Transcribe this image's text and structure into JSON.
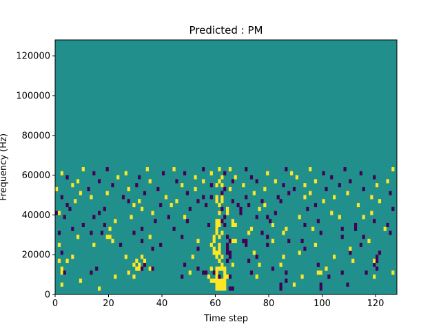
{
  "chart_data": {
    "type": "heatmap",
    "title": "Predicted : PM",
    "xlabel": "Time step",
    "ylabel": "Frequency (Hz)",
    "xlim": [
      0,
      128
    ],
    "ylim": [
      0,
      128000
    ],
    "x_ticks": [
      0,
      20,
      40,
      60,
      80,
      100,
      120
    ],
    "x_tick_labels": [
      "0",
      "20",
      "40",
      "60",
      "80",
      "100",
      "120"
    ],
    "y_ticks": [
      0,
      20000,
      40000,
      60000,
      80000,
      100000,
      120000
    ],
    "y_tick_labels": [
      "0",
      "20000",
      "40000",
      "60000",
      "80000",
      "100000",
      "120000"
    ],
    "n_time_steps": 128,
    "n_freq_bins": 64,
    "background_value": 0,
    "value_colors": {
      "-1": "#440154",
      "0": "#21908d",
      "1": "#fde725"
    },
    "cells": [
      [
        60,
        1,
        1
      ],
      [
        61,
        1,
        1
      ],
      [
        62,
        1,
        1
      ],
      [
        63,
        1,
        1
      ],
      [
        65,
        1,
        -1
      ],
      [
        66,
        1,
        -1
      ],
      [
        84,
        1,
        -1
      ],
      [
        99,
        1,
        -1
      ],
      [
        16,
        1,
        1
      ],
      [
        2,
        2,
        1
      ],
      [
        60,
        2,
        1
      ],
      [
        61,
        2,
        1
      ],
      [
        62,
        2,
        1
      ],
      [
        63,
        2,
        1
      ],
      [
        84,
        2,
        -1
      ],
      [
        89,
        2,
        1
      ],
      [
        99,
        2,
        -1
      ],
      [
        109,
        2,
        -1
      ],
      [
        58,
        3,
        1
      ],
      [
        59,
        3,
        1
      ],
      [
        60,
        3,
        1
      ],
      [
        61,
        3,
        1
      ],
      [
        62,
        3,
        1
      ],
      [
        63,
        3,
        1
      ],
      [
        86,
        3,
        -1
      ],
      [
        9,
        3,
        1
      ],
      [
        22,
        4,
        1
      ],
      [
        29,
        4,
        1
      ],
      [
        47,
        4,
        -1
      ],
      [
        57,
        4,
        1
      ],
      [
        60,
        4,
        1
      ],
      [
        61,
        4,
        -1
      ],
      [
        63,
        4,
        1
      ],
      [
        64,
        4,
        1
      ],
      [
        65,
        4,
        -1
      ],
      [
        75,
        4,
        1
      ],
      [
        92,
        4,
        1
      ],
      [
        102,
        4,
        -1
      ],
      [
        119,
        4,
        1
      ],
      [
        2,
        5,
        1
      ],
      [
        3,
        5,
        -1
      ],
      [
        13,
        5,
        -1
      ],
      [
        27,
        5,
        1
      ],
      [
        50,
        5,
        1
      ],
      [
        55,
        5,
        -1
      ],
      [
        56,
        5,
        -1
      ],
      [
        59,
        5,
        -1
      ],
      [
        60,
        5,
        1
      ],
      [
        63,
        5,
        1
      ],
      [
        73,
        5,
        -1
      ],
      [
        86,
        5,
        -1
      ],
      [
        98,
        5,
        1
      ],
      [
        99,
        5,
        1
      ],
      [
        107,
        5,
        -1
      ],
      [
        116,
        5,
        -1
      ],
      [
        126,
        5,
        1
      ],
      [
        2,
        6,
        1
      ],
      [
        15,
        6,
        -1
      ],
      [
        30,
        6,
        1
      ],
      [
        31,
        6,
        1
      ],
      [
        32,
        6,
        -1
      ],
      [
        35,
        6,
        1
      ],
      [
        36,
        6,
        -1
      ],
      [
        53,
        6,
        -1
      ],
      [
        58,
        6,
        1
      ],
      [
        60,
        6,
        1
      ],
      [
        61,
        6,
        1
      ],
      [
        62,
        6,
        1
      ],
      [
        63,
        6,
        1
      ],
      [
        81,
        6,
        -1
      ],
      [
        101,
        6,
        1
      ],
      [
        120,
        6,
        -1
      ],
      [
        29,
        7,
        1
      ],
      [
        31,
        7,
        1
      ],
      [
        33,
        7,
        -1
      ],
      [
        48,
        7,
        -1
      ],
      [
        62,
        7,
        1
      ],
      [
        66,
        7,
        1
      ],
      [
        76,
        7,
        1
      ],
      [
        84,
        7,
        1
      ],
      [
        98,
        7,
        -1
      ],
      [
        119,
        7,
        -1
      ],
      [
        1,
        8,
        1
      ],
      [
        4,
        8,
        1
      ],
      [
        30,
        8,
        1
      ],
      [
        33,
        8,
        1
      ],
      [
        61,
        8,
        1
      ],
      [
        64,
        8,
        -1
      ],
      [
        72,
        8,
        -1
      ],
      [
        111,
        8,
        1
      ],
      [
        119,
        8,
        1
      ],
      [
        120,
        8,
        -1
      ],
      [
        6,
        9,
        1
      ],
      [
        26,
        9,
        1
      ],
      [
        32,
        9,
        1
      ],
      [
        51,
        9,
        1
      ],
      [
        60,
        9,
        1
      ],
      [
        62,
        9,
        1
      ],
      [
        65,
        9,
        -1
      ],
      [
        75,
        9,
        -1
      ],
      [
        85,
        9,
        1
      ],
      [
        104,
        9,
        1
      ],
      [
        120,
        9,
        -1
      ],
      [
        2,
        10,
        -1
      ],
      [
        59,
        10,
        1
      ],
      [
        60,
        10,
        1
      ],
      [
        61,
        10,
        1
      ],
      [
        64,
        10,
        -1
      ],
      [
        65,
        10,
        -1
      ],
      [
        74,
        10,
        1
      ],
      [
        91,
        10,
        1
      ],
      [
        110,
        10,
        -1
      ],
      [
        121,
        10,
        -1
      ],
      [
        36,
        11,
        -1
      ],
      [
        53,
        11,
        -1
      ],
      [
        59,
        11,
        1
      ],
      [
        61,
        11,
        1
      ],
      [
        64,
        11,
        -1
      ],
      [
        93,
        11,
        -1
      ],
      [
        110,
        11,
        1
      ],
      [
        1,
        12,
        1
      ],
      [
        14,
        12,
        1
      ],
      [
        24,
        12,
        -1
      ],
      [
        39,
        12,
        -1
      ],
      [
        58,
        12,
        1
      ],
      [
        61,
        12,
        1
      ],
      [
        64,
        12,
        -1
      ],
      [
        71,
        12,
        -1
      ],
      [
        79,
        12,
        -1
      ],
      [
        97,
        12,
        1
      ],
      [
        114,
        12,
        -1
      ],
      [
        21,
        13,
        1
      ],
      [
        32,
        13,
        -1
      ],
      [
        53,
        13,
        1
      ],
      [
        59,
        13,
        1
      ],
      [
        65,
        13,
        -1
      ],
      [
        66,
        13,
        1
      ],
      [
        67,
        13,
        1
      ],
      [
        70,
        13,
        -1
      ],
      [
        71,
        13,
        -1
      ],
      [
        81,
        13,
        1
      ],
      [
        87,
        13,
        -1
      ],
      [
        92,
        13,
        -1
      ],
      [
        117,
        13,
        1
      ],
      [
        8,
        14,
        1
      ],
      [
        19,
        14,
        1
      ],
      [
        20,
        14,
        1
      ],
      [
        35,
        14,
        1
      ],
      [
        47,
        14,
        -1
      ],
      [
        59,
        14,
        1
      ],
      [
        61,
        14,
        1
      ],
      [
        64,
        14,
        -1
      ],
      [
        79,
        14,
        -1
      ],
      [
        107,
        14,
        -1
      ],
      [
        115,
        14,
        -1
      ],
      [
        1,
        15,
        -1
      ],
      [
        13,
        15,
        -1
      ],
      [
        17,
        15,
        -1
      ],
      [
        29,
        15,
        -1
      ],
      [
        60,
        15,
        1
      ],
      [
        62,
        15,
        1
      ],
      [
        72,
        15,
        1
      ],
      [
        77,
        15,
        -1
      ],
      [
        85,
        15,
        1
      ],
      [
        99,
        15,
        -1
      ],
      [
        125,
        15,
        -1
      ],
      [
        6,
        16,
        -1
      ],
      [
        20,
        16,
        1
      ],
      [
        32,
        16,
        -1
      ],
      [
        44,
        16,
        -1
      ],
      [
        60,
        16,
        1
      ],
      [
        73,
        16,
        1
      ],
      [
        86,
        16,
        1
      ],
      [
        96,
        16,
        1
      ],
      [
        107,
        16,
        -1
      ],
      [
        112,
        16,
        -1
      ],
      [
        123,
        16,
        1
      ],
      [
        10,
        17,
        -1
      ],
      [
        18,
        17,
        -1
      ],
      [
        57,
        17,
        -1
      ],
      [
        60,
        17,
        1
      ],
      [
        61,
        17,
        1
      ],
      [
        63,
        17,
        -1
      ],
      [
        66,
        17,
        1
      ],
      [
        67,
        17,
        1
      ],
      [
        81,
        17,
        1
      ],
      [
        93,
        17,
        -1
      ],
      [
        112,
        17,
        -1
      ],
      [
        124,
        17,
        -1
      ],
      [
        22,
        18,
        1
      ],
      [
        37,
        18,
        -1
      ],
      [
        49,
        18,
        -1
      ],
      [
        60,
        18,
        1
      ],
      [
        61,
        18,
        1
      ],
      [
        62,
        18,
        -1
      ],
      [
        66,
        18,
        1
      ],
      [
        80,
        18,
        -1
      ],
      [
        98,
        18,
        -1
      ],
      [
        119,
        18,
        -1
      ],
      [
        3,
        19,
        -1
      ],
      [
        14,
        19,
        -1
      ],
      [
        28,
        19,
        1
      ],
      [
        42,
        19,
        -1
      ],
      [
        48,
        19,
        1
      ],
      [
        63,
        19,
        -1
      ],
      [
        75,
        19,
        -1
      ],
      [
        79,
        19,
        -1
      ],
      [
        91,
        19,
        1
      ],
      [
        106,
        19,
        1
      ],
      [
        115,
        19,
        1
      ],
      [
        0,
        20,
        -1
      ],
      [
        1,
        20,
        1
      ],
      [
        16,
        20,
        -1
      ],
      [
        36,
        20,
        1
      ],
      [
        61,
        20,
        1
      ],
      [
        64,
        20,
        1
      ],
      [
        69,
        20,
        -1
      ],
      [
        82,
        20,
        -1
      ],
      [
        103,
        20,
        1
      ],
      [
        118,
        20,
        1
      ],
      [
        5,
        21,
        -1
      ],
      [
        18,
        21,
        -1
      ],
      [
        32,
        21,
        1
      ],
      [
        50,
        21,
        -1
      ],
      [
        62,
        21,
        -1
      ],
      [
        64,
        21,
        1
      ],
      [
        69,
        21,
        -1
      ],
      [
        76,
        21,
        1
      ],
      [
        94,
        21,
        -1
      ],
      [
        126,
        21,
        -1
      ],
      [
        4,
        22,
        -1
      ],
      [
        29,
        22,
        1
      ],
      [
        39,
        22,
        -1
      ],
      [
        43,
        22,
        1
      ],
      [
        56,
        22,
        -1
      ],
      [
        61,
        22,
        1
      ],
      [
        68,
        22,
        -1
      ],
      [
        72,
        22,
        -1
      ],
      [
        78,
        22,
        1
      ],
      [
        97,
        22,
        -1
      ],
      [
        113,
        22,
        1
      ],
      [
        7,
        23,
        1
      ],
      [
        27,
        23,
        -1
      ],
      [
        31,
        23,
        1
      ],
      [
        45,
        23,
        1
      ],
      [
        53,
        23,
        -1
      ],
      [
        60,
        23,
        1
      ],
      [
        62,
        23,
        1
      ],
      [
        66,
        23,
        -1
      ],
      [
        77,
        23,
        -1
      ],
      [
        84,
        23,
        -1
      ],
      [
        100,
        23,
        1
      ],
      [
        121,
        23,
        1
      ],
      [
        2,
        24,
        -1
      ],
      [
        13,
        24,
        1
      ],
      [
        25,
        24,
        -1
      ],
      [
        41,
        24,
        1
      ],
      [
        55,
        24,
        -1
      ],
      [
        58,
        24,
        -1
      ],
      [
        60,
        24,
        1
      ],
      [
        62,
        24,
        1
      ],
      [
        71,
        24,
        -1
      ],
      [
        83,
        24,
        -1
      ],
      [
        93,
        24,
        1
      ],
      [
        104,
        24,
        1
      ],
      [
        118,
        24,
        1
      ],
      [
        9,
        25,
        1
      ],
      [
        19,
        25,
        1
      ],
      [
        33,
        25,
        -1
      ],
      [
        49,
        25,
        -1
      ],
      [
        62,
        25,
        -1
      ],
      [
        74,
        25,
        1
      ],
      [
        87,
        25,
        -1
      ],
      [
        95,
        25,
        1
      ],
      [
        109,
        25,
        1
      ],
      [
        125,
        25,
        -1
      ],
      [
        0,
        26,
        1
      ],
      [
        12,
        26,
        -1
      ],
      [
        27,
        26,
        1
      ],
      [
        38,
        26,
        -1
      ],
      [
        52,
        26,
        1
      ],
      [
        63,
        26,
        -1
      ],
      [
        65,
        26,
        1
      ],
      [
        78,
        26,
        1
      ],
      [
        89,
        26,
        -1
      ],
      [
        101,
        26,
        -1
      ],
      [
        115,
        26,
        -1
      ],
      [
        6,
        27,
        1
      ],
      [
        21,
        27,
        -1
      ],
      [
        30,
        27,
        -1
      ],
      [
        47,
        27,
        1
      ],
      [
        58,
        27,
        -1
      ],
      [
        60,
        27,
        1
      ],
      [
        62,
        27,
        1
      ],
      [
        70,
        27,
        1
      ],
      [
        85,
        27,
        -1
      ],
      [
        93,
        27,
        1
      ],
      [
        106,
        27,
        -1
      ],
      [
        120,
        27,
        1
      ],
      [
        8,
        28,
        1
      ],
      [
        16,
        28,
        -1
      ],
      [
        35,
        28,
        1
      ],
      [
        45,
        28,
        -1
      ],
      [
        55,
        28,
        1
      ],
      [
        61,
        28,
        1
      ],
      [
        66,
        28,
        -1
      ],
      [
        75,
        28,
        -1
      ],
      [
        82,
        28,
        1
      ],
      [
        97,
        28,
        1
      ],
      [
        110,
        28,
        -1
      ],
      [
        124,
        28,
        1
      ],
      [
        4,
        29,
        -1
      ],
      [
        23,
        29,
        1
      ],
      [
        31,
        29,
        -1
      ],
      [
        52,
        29,
        1
      ],
      [
        62,
        29,
        1
      ],
      [
        67,
        29,
        1
      ],
      [
        73,
        29,
        -1
      ],
      [
        90,
        29,
        1
      ],
      [
        103,
        29,
        -1
      ],
      [
        119,
        29,
        -1
      ],
      [
        2,
        30,
        1
      ],
      [
        14,
        30,
        -1
      ],
      [
        26,
        30,
        1
      ],
      [
        40,
        30,
        -1
      ],
      [
        48,
        30,
        -1
      ],
      [
        58,
        30,
        1
      ],
      [
        63,
        30,
        -1
      ],
      [
        79,
        30,
        1
      ],
      [
        88,
        30,
        1
      ],
      [
        100,
        30,
        -1
      ],
      [
        114,
        30,
        -1
      ],
      [
        10,
        31,
        1
      ],
      [
        19,
        31,
        -1
      ],
      [
        34,
        31,
        1
      ],
      [
        44,
        31,
        1
      ],
      [
        55,
        31,
        -1
      ],
      [
        61,
        31,
        1
      ],
      [
        65,
        31,
        1
      ],
      [
        71,
        31,
        -1
      ],
      [
        86,
        31,
        -1
      ],
      [
        95,
        31,
        1
      ],
      [
        108,
        31,
        -1
      ],
      [
        126,
        31,
        1
      ]
    ]
  }
}
